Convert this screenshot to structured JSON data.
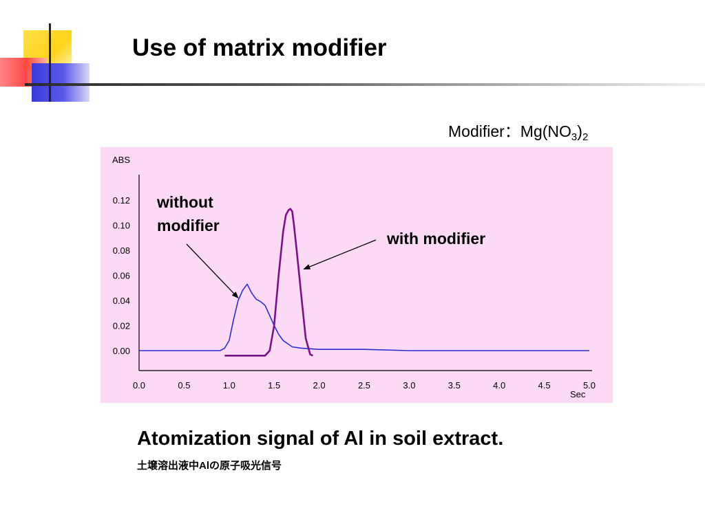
{
  "slide": {
    "title": "Use of matrix modifier",
    "modifier_prefix": "Modifier：Mg(NO",
    "modifier_sub1": "3",
    "modifier_close": ")",
    "modifier_sub2": "2",
    "caption": "Atomization signal of Al in soil extract.",
    "caption_jp": "土壌溶出液中Alの原子吸光信号",
    "colors": {
      "chart_background": "#fcd9f4",
      "without_modifier_line": "#2b2bd8",
      "with_modifier_line": "#7a0f8a"
    }
  },
  "chart_data": {
    "type": "line",
    "ylabel": "ABS",
    "xlabel": "Sec",
    "xlim": [
      0,
      5
    ],
    "ylim": [
      0,
      0.12
    ],
    "xticks": [
      "0.0",
      "0.5",
      "1.0",
      "1.5",
      "2.0",
      "2.5",
      "3.0",
      "3.5",
      "4.0",
      "4.5",
      "5.0"
    ],
    "yticks": [
      "0.00",
      "0.02",
      "0.04",
      "0.06",
      "0.08",
      "0.10",
      "0.12"
    ],
    "series": [
      {
        "name": "without modifier",
        "x": [
          0.0,
          0.5,
          0.9,
          0.95,
          1.0,
          1.05,
          1.1,
          1.15,
          1.2,
          1.25,
          1.3,
          1.35,
          1.4,
          1.45,
          1.5,
          1.55,
          1.6,
          1.7,
          1.8,
          2.0,
          2.5,
          3.0,
          3.5,
          4.0,
          4.5,
          5.0
        ],
        "values": [
          0.0,
          0.0,
          0.0,
          0.002,
          0.008,
          0.025,
          0.04,
          0.048,
          0.053,
          0.046,
          0.041,
          0.039,
          0.036,
          0.028,
          0.02,
          0.013,
          0.008,
          0.003,
          0.002,
          0.001,
          0.001,
          0.0,
          0.0,
          0.0,
          0.0,
          0.0
        ]
      },
      {
        "name": "with modifier",
        "x": [
          0.95,
          1.4,
          1.45,
          1.5,
          1.55,
          1.6,
          1.63,
          1.66,
          1.68,
          1.7,
          1.72,
          1.75,
          1.8,
          1.85,
          1.9,
          1.93
        ],
        "values": [
          -0.004,
          -0.004,
          0.0,
          0.02,
          0.06,
          0.095,
          0.108,
          0.112,
          0.113,
          0.111,
          0.1,
          0.08,
          0.045,
          0.01,
          -0.003,
          -0.004
        ]
      }
    ],
    "annotations": [
      {
        "text_line1": "without",
        "text_line2": "modifier",
        "target_x": 1.1,
        "target_y": 0.042
      },
      {
        "text": "with modifier",
        "target_x": 1.83,
        "target_y": 0.065
      }
    ]
  }
}
